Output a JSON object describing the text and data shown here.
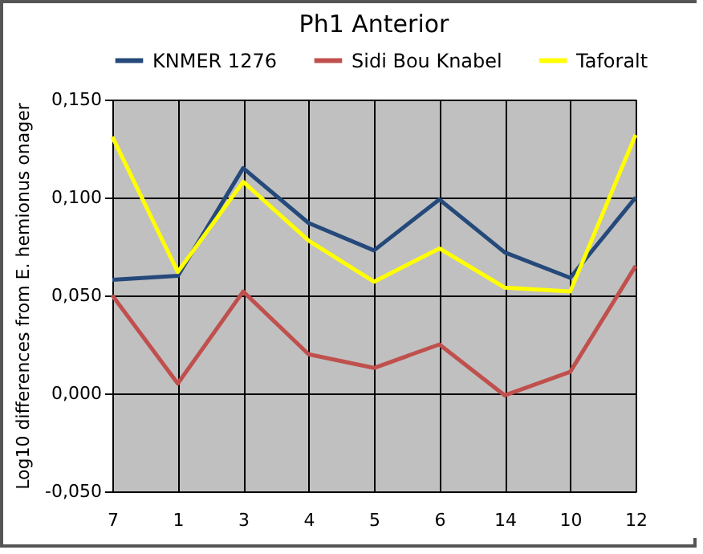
{
  "chart_data": {
    "type": "line",
    "title": "Ph1 Anterior",
    "ylabel": "Log10 differences from E. hemionus onager",
    "categories": [
      "7",
      "1",
      "3",
      "4",
      "5",
      "6",
      "14",
      "10",
      "12"
    ],
    "series": [
      {
        "name": "KNMER 1276",
        "color": "#24497a",
        "values": [
          0.058,
          0.06,
          0.115,
          0.087,
          0.073,
          0.099,
          0.072,
          0.059,
          0.1
        ]
      },
      {
        "name": "Sidi Bou Knabel",
        "color": "#c0504d",
        "values": [
          0.05,
          0.005,
          0.052,
          0.02,
          0.013,
          0.025,
          -0.001,
          0.011,
          0.065
        ]
      },
      {
        "name": "Taforalt",
        "color": "#ffff00",
        "values": [
          0.131,
          0.062,
          0.108,
          0.078,
          0.057,
          0.074,
          0.054,
          0.052,
          0.132
        ]
      }
    ],
    "ylim": [
      -0.05,
      0.15
    ],
    "yticks": [
      {
        "value": -0.05,
        "label": "-0,050"
      },
      {
        "value": 0,
        "label": "0,000"
      },
      {
        "value": 0.05,
        "label": "0,050"
      },
      {
        "value": 0.1,
        "label": "0,100"
      },
      {
        "value": 0.15,
        "label": "0,150"
      }
    ],
    "grid": true,
    "legend": "top",
    "marker": "none",
    "line_style": "solid"
  }
}
